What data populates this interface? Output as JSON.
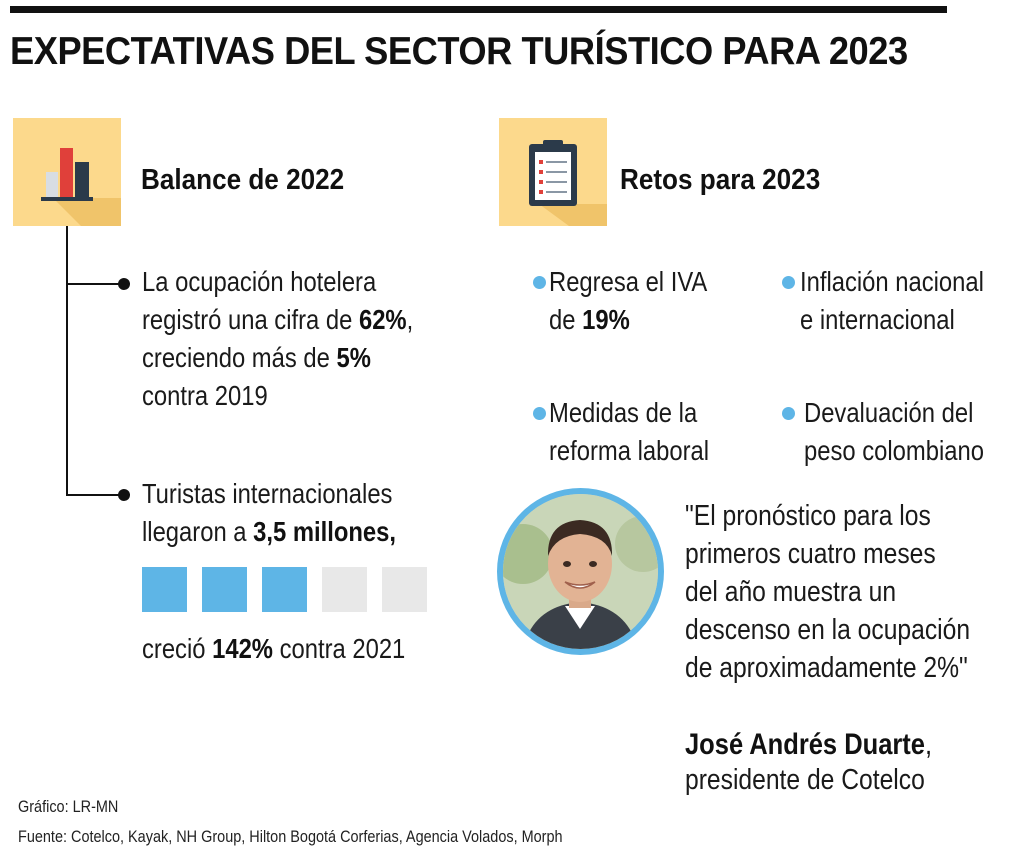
{
  "title": "EXPECTATIVAS DEL SECTOR TURÍSTICO PARA 2023",
  "balance": {
    "heading": "Balance de 2022",
    "icon": "bar-chart-icon",
    "item1": {
      "line1": "La ocupación hotelera",
      "line2_pre": "registró una cifra de ",
      "line2_bold": "62%",
      "line2_post": ",",
      "line3_pre": "creciendo más de ",
      "line3_bold": "5%",
      "line4": "contra 2019"
    },
    "item2": {
      "line1": "Turistas internacionales",
      "line2_pre": "llegaron a ",
      "line2_bold": "3,5 millones,",
      "progress_filled": 3,
      "progress_total": 5,
      "line3_pre": "creció ",
      "line3_bold": "142%",
      "line3_post": " contra 2021"
    }
  },
  "retos": {
    "heading": "Retos para 2023",
    "icon": "clipboard-icon",
    "items": [
      {
        "line1": "Regresa el IVA",
        "line2_pre": "de ",
        "line2_bold": "19%"
      },
      {
        "line1": "Inflación nacional",
        "line2": "e internacional"
      },
      {
        "line1": "Medidas de la",
        "line2": "reforma laboral"
      },
      {
        "line1": "Devaluación del",
        "line2": "peso colombiano"
      }
    ]
  },
  "quote": {
    "lines": [
      "\"El pronóstico para los",
      "primeros cuatro meses",
      "del año muestra un",
      "descenso en la ocupación",
      "de aproximadamente 2%\""
    ],
    "name": "José Andrés Duarte",
    "name_suffix": ",",
    "role": "presidente de Cotelco"
  },
  "footer": {
    "grafico": "Gráfico: LR-MN",
    "fuente": "Fuente: Cotelco, Kayak, NH Group, Hilton Bogotá Corferias, Agencia Volados, Morph"
  },
  "colors": {
    "accent_blue": "#5eb5e6",
    "tile_yellow": "#fcd98c",
    "empty_gray": "#e8e8e8"
  }
}
